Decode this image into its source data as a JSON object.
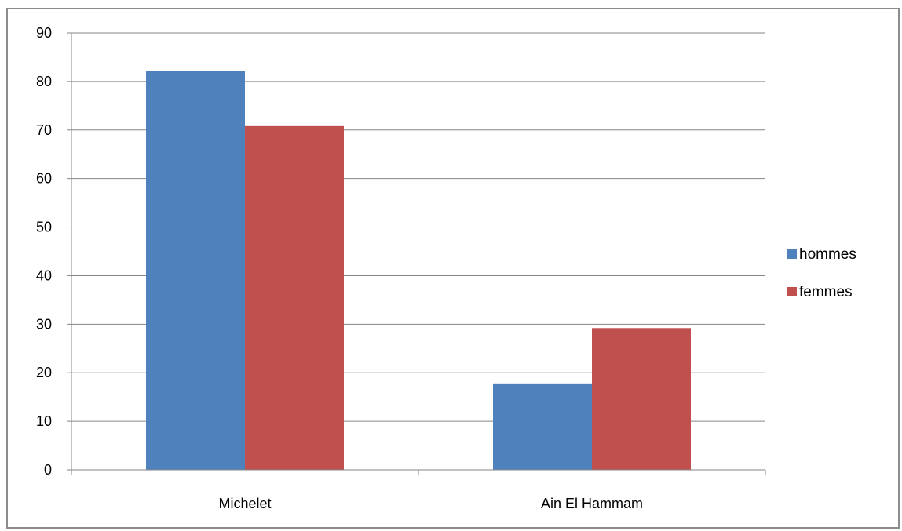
{
  "chart_data": {
    "type": "bar",
    "categories": [
      "Michelet",
      "Ain El Hammam"
    ],
    "series": [
      {
        "name": "hommes",
        "color": "#4F81BD",
        "values": [
          82.2,
          17.8
        ]
      },
      {
        "name": "femmes",
        "color": "#C0504D",
        "values": [
          70.8,
          29.2
        ]
      }
    ],
    "ylim": [
      0,
      90
    ],
    "yticks": [
      0,
      10,
      20,
      30,
      40,
      50,
      60,
      70,
      80,
      90
    ],
    "grid": true,
    "legend_position": "right"
  }
}
